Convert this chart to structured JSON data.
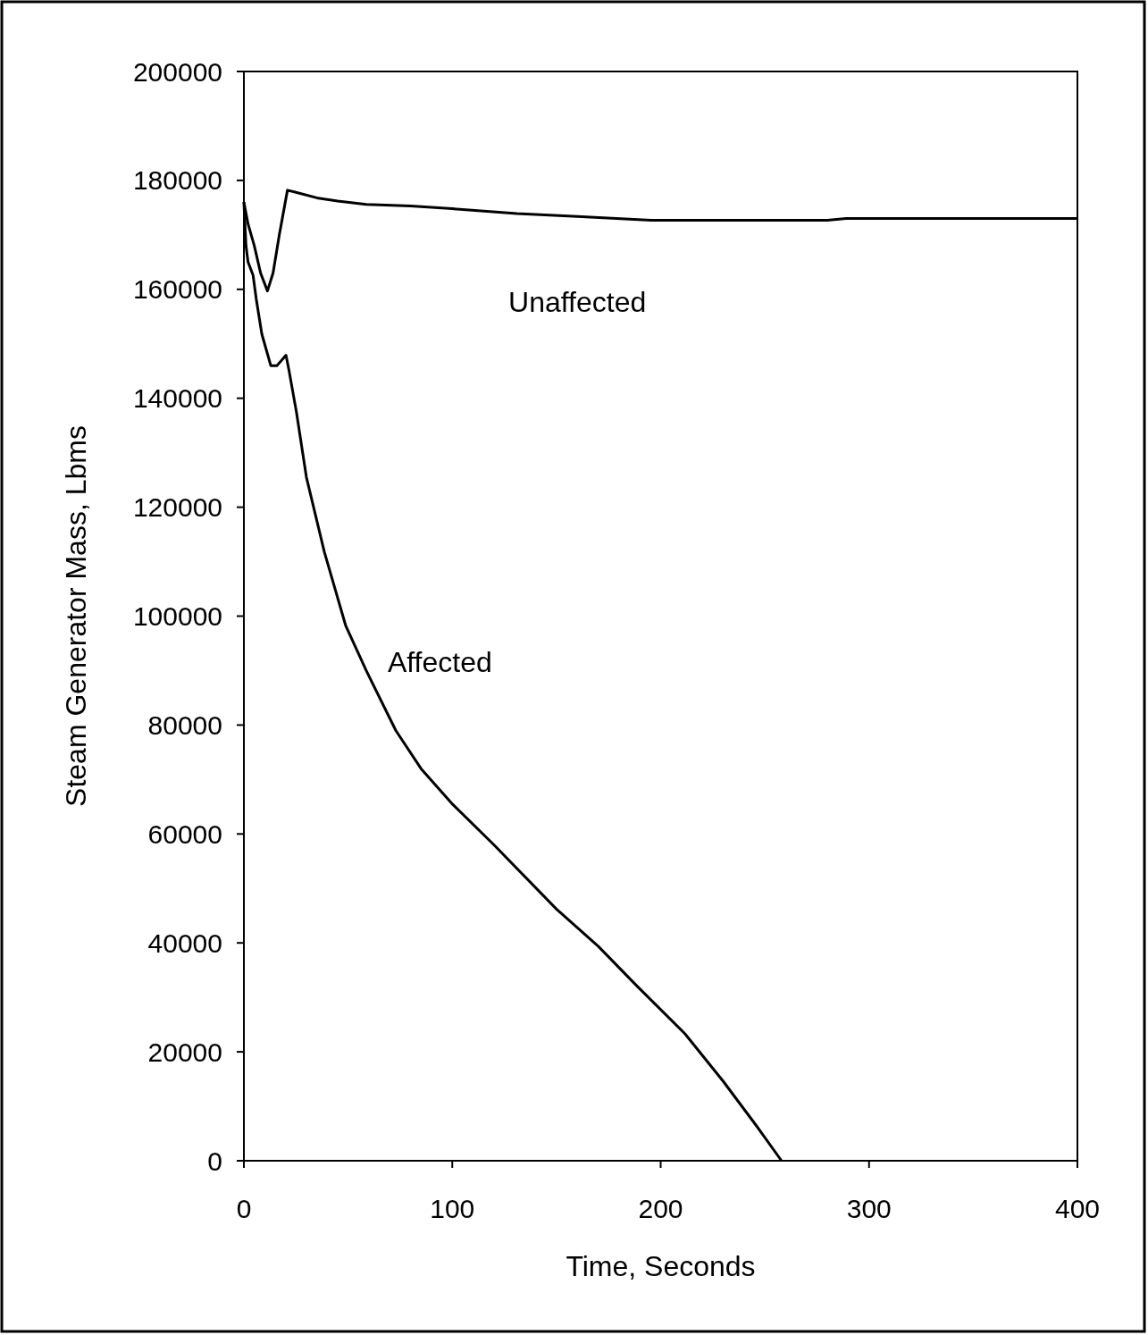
{
  "chart_data": {
    "type": "line",
    "xlabel": "Time, Seconds",
    "ylabel": "Steam Generator Mass, Lbms",
    "xlim": [
      0,
      400
    ],
    "xticks": [
      0,
      100,
      200,
      300,
      400
    ],
    "ylim": [
      0,
      200000
    ],
    "yticks": [
      0,
      20000,
      40000,
      60000,
      80000,
      100000,
      120000,
      140000,
      160000,
      180000,
      200000
    ],
    "grid": false,
    "marker": "none",
    "line_style": "solid",
    "series": [
      {
        "name": "Unaffected",
        "color": "#000000",
        "x": [
          0,
          2,
          5,
          8,
          11.3,
          14,
          17,
          20.9,
          25,
          35,
          45,
          58.7,
          80,
          100,
          131,
          160,
          195.5,
          250,
          280,
          289,
          340,
          400
        ],
        "values": [
          176000,
          172000,
          168000,
          163000,
          159700,
          163000,
          170000,
          178200,
          177800,
          176800,
          176200,
          175600,
          175300,
          174800,
          173900,
          173400,
          172700,
          172700,
          172700,
          173000,
          173000,
          173000
        ]
      },
      {
        "name": "Affected",
        "color": "#000000",
        "x": [
          0,
          1,
          2,
          4.4,
          5.9,
          8.6,
          12.9,
          15.9,
          20.2,
          21.6,
          25.2,
          30,
          38.6,
          48.9,
          58.7,
          72.9,
          85,
          100.3,
          120,
          150,
          170,
          188.6,
          211.7,
          230,
          246,
          258
        ],
        "values": [
          176000,
          168000,
          165000,
          162600,
          158300,
          151800,
          146000,
          146000,
          147900,
          145200,
          137500,
          125500,
          111800,
          98200,
          90000,
          79000,
          72000,
          65400,
          58000,
          46200,
          39400,
          32100,
          23300,
          14600,
          6400,
          0
        ]
      }
    ]
  }
}
